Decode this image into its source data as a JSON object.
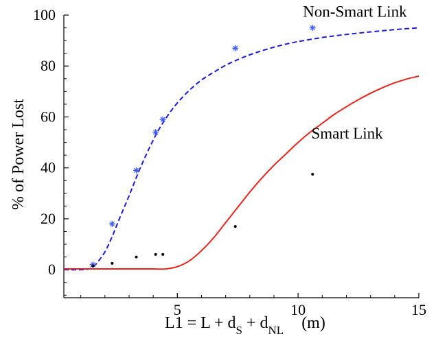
{
  "chart_data": {
    "type": "line",
    "xlim": [
      0.3,
      15
    ],
    "ylim": [
      -11,
      100
    ],
    "x_ticks": [
      5,
      10,
      15
    ],
    "y_ticks": [
      0,
      20,
      40,
      60,
      80,
      100
    ],
    "x_tick_labels": [
      "5",
      "10",
      "15"
    ],
    "y_tick_labels": [
      "0",
      "20",
      "40",
      "60",
      "80",
      "100"
    ],
    "ylabel": "% of Power Lost",
    "xlabel": {
      "l1": "L1 = L + d",
      "sub_s": "S",
      "plus": " + d",
      "sub_nl": "NL",
      "unit": "(m)"
    },
    "grid": false,
    "series": [
      {
        "name": "Non-Smart Link",
        "style": "dashed",
        "color": "#1a1adb",
        "x": [
          0.3,
          1.0,
          1.3,
          1.5,
          1.7,
          2.0,
          2.3,
          2.6,
          3.0,
          3.4,
          3.8,
          4.2,
          4.6,
          5.0,
          5.5,
          6.0,
          6.5,
          7.0,
          7.5,
          8.0,
          8.5,
          9.0,
          9.5,
          10.0,
          11.0,
          12.0,
          13.0,
          14.0,
          15.0
        ],
        "y": [
          0,
          0,
          0.2,
          1.0,
          3.0,
          7.0,
          13.0,
          20.0,
          29.0,
          38.5,
          47.0,
          54.5,
          60.5,
          65.5,
          70.5,
          74.5,
          77.5,
          80.3,
          82.5,
          84.4,
          86.0,
          87.4,
          88.6,
          89.6,
          91.2,
          92.4,
          93.4,
          94.3,
          95.0
        ]
      },
      {
        "name": "Smart Link",
        "style": "solid",
        "color": "#e8231c",
        "x": [
          0.3,
          1.0,
          2.0,
          3.0,
          4.0,
          4.5,
          5.0,
          5.5,
          6.0,
          6.5,
          7.0,
          7.5,
          8.0,
          8.5,
          9.0,
          9.5,
          10.0,
          10.5,
          11.0,
          11.5,
          12.0,
          12.5,
          13.0,
          13.5,
          14.0,
          14.5,
          15.0
        ],
        "y": [
          0.3,
          0.3,
          0.3,
          0.3,
          0.3,
          0.3,
          1.2,
          3.5,
          7.5,
          12.5,
          18.5,
          24.5,
          30.5,
          36.0,
          41.0,
          45.5,
          50.0,
          54.0,
          57.5,
          61.0,
          64.0,
          66.8,
          69.3,
          71.5,
          73.4,
          74.9,
          76.0
        ]
      }
    ],
    "scatter": [
      {
        "name": "Non-Smart Link data",
        "marker": "asterisk",
        "color": "#3b5bf5",
        "x": [
          1.5,
          2.3,
          3.3,
          4.1,
          4.4,
          7.4,
          10.6
        ],
        "y": [
          2,
          18,
          39,
          54,
          59,
          87,
          95
        ]
      },
      {
        "name": "Smart Link data",
        "marker": "dot",
        "color": "#000000",
        "x": [
          1.5,
          2.3,
          3.3,
          4.1,
          4.4,
          7.4,
          10.6
        ],
        "y": [
          1.5,
          2.5,
          5,
          6,
          6,
          17,
          37.5
        ]
      }
    ],
    "annotations": [
      {
        "text": "Non-Smart Link",
        "x": 10.2,
        "y": 99.3,
        "anchor": "start"
      },
      {
        "text": "Smart Link",
        "x": 10.55,
        "y": 51.5,
        "anchor": "start"
      }
    ]
  }
}
